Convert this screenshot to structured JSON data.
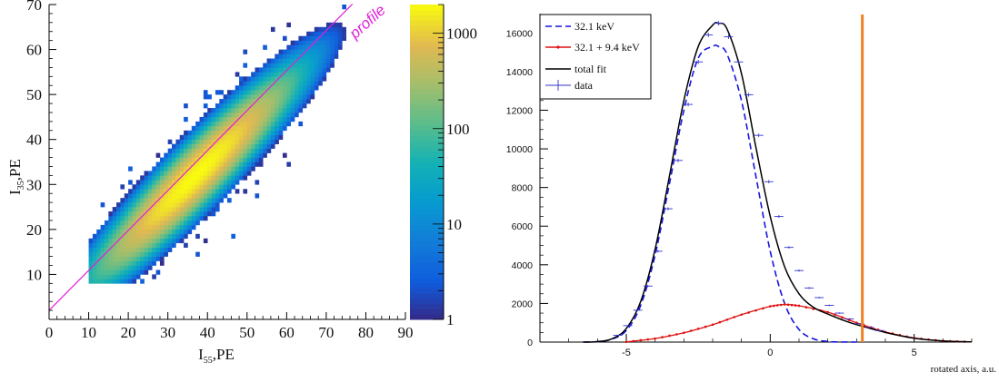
{
  "chart_data": [
    {
      "type": "heatmap",
      "xlabel_main": "I",
      "xlabel_sub": "55",
      "xlabel_unit": ",PE",
      "ylabel_main": "I",
      "ylabel_sub": "35",
      "ylabel_unit": ",PE",
      "xlim": [
        0,
        90
      ],
      "ylim": [
        0,
        70
      ],
      "x_ticks": [
        "0",
        "10",
        "20",
        "30",
        "40",
        "50",
        "60",
        "70",
        "80",
        "90"
      ],
      "y_ticks": [
        "10",
        "20",
        "30",
        "40",
        "50",
        "60",
        "70"
      ],
      "profile_line": {
        "label": "profile",
        "x": [
          0,
          90
        ],
        "y": [
          2,
          82
        ]
      },
      "colorbar": {
        "scale": "log",
        "min": 1,
        "max": 2000,
        "tick_labels": [
          "1",
          "10",
          "100",
          "1000"
        ]
      },
      "distribution": {
        "mean_x": 37,
        "mean_y": 32,
        "sigma_along": 13,
        "sigma_across": 2.3,
        "peak": 2000
      }
    },
    {
      "type": "line",
      "xlabel": "rotated axis, a.u.",
      "xlim": [
        -8,
        7
      ],
      "ylim": [
        0,
        17000
      ],
      "x_ticks": [
        "-5",
        "0",
        "5"
      ],
      "y_ticks": [
        "0",
        "2000",
        "4000",
        "6000",
        "8000",
        "10000",
        "12000",
        "14000",
        "16000"
      ],
      "vertical_marker_x": 3.2,
      "series": [
        {
          "name": "32.1 keV",
          "color": "#1515e0",
          "style": "dashed",
          "x": [
            -6.5,
            -6,
            -5.5,
            -5,
            -4.5,
            -4,
            -3.5,
            -3,
            -2.5,
            -2,
            -1.8,
            -1.5,
            -1,
            -0.5,
            0,
            0.5,
            1,
            1.5,
            2,
            2.5,
            3
          ],
          "y": [
            0,
            20,
            150,
            600,
            1900,
            4500,
            8200,
            12000,
            14700,
            15300,
            15300,
            14900,
            12500,
            8600,
            4700,
            2000,
            650,
            170,
            30,
            5,
            0
          ]
        },
        {
          "name": "32.1 + 9.4 keV",
          "color": "#e01010",
          "style": "solid",
          "x": [
            -5,
            -4,
            -3,
            -2,
            -1,
            0,
            0.5,
            1,
            2,
            3,
            4,
            5,
            6,
            7
          ],
          "y": [
            10,
            180,
            480,
            900,
            1420,
            1850,
            1950,
            1880,
            1550,
            1000,
            520,
            210,
            60,
            10
          ]
        },
        {
          "name": "total fit",
          "color": "#000000",
          "style": "solid",
          "x": [
            -6.5,
            -6,
            -5.5,
            -5,
            -4.5,
            -4,
            -3.5,
            -3,
            -2.5,
            -2,
            -1.8,
            -1.5,
            -1,
            -0.5,
            0,
            0.5,
            1,
            1.5,
            2,
            2.5,
            3,
            4,
            5,
            6,
            7
          ],
          "y": [
            0,
            25,
            170,
            700,
            2100,
            4800,
            8600,
            12500,
            15300,
            16400,
            16500,
            16200,
            13900,
            10100,
            6500,
            3900,
            2500,
            1800,
            1450,
            1150,
            900,
            500,
            200,
            60,
            10
          ]
        },
        {
          "name": "data",
          "color": "#3333cc",
          "style": "errorbar",
          "x": [
            -5.3,
            -4.95,
            -4.6,
            -4.25,
            -3.9,
            -3.55,
            -3.2,
            -2.85,
            -2.5,
            -2.15,
            -1.8,
            -1.45,
            -1.1,
            -0.75,
            -0.4,
            -0.05,
            0.3,
            0.65,
            1.0,
            1.35,
            1.7,
            2.05,
            2.4,
            2.75,
            3.1,
            3.45,
            3.8
          ],
          "y": [
            350,
            850,
            1650,
            2900,
            4700,
            6900,
            9400,
            12300,
            14500,
            15900,
            16500,
            15800,
            14500,
            12800,
            10700,
            8300,
            6500,
            4900,
            3700,
            2800,
            2300,
            1900,
            1500,
            1200,
            950,
            750,
            600
          ]
        }
      ]
    }
  ]
}
